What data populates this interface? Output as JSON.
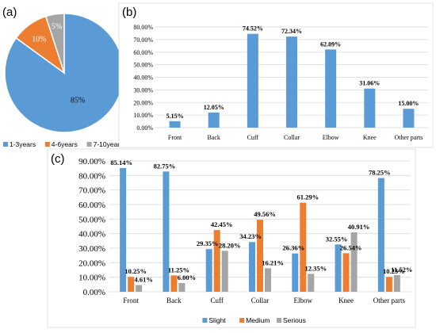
{
  "panels": {
    "a": "(a)",
    "b": "(b)",
    "c": "(c)"
  },
  "chart_data": [
    {
      "type": "pie",
      "panel": "(a)",
      "categories": [
        "1-3years",
        "4-6years",
        "7-10years"
      ],
      "values": [
        85,
        10,
        5
      ],
      "value_labels": [
        "85%",
        "10%",
        "5%"
      ],
      "colors": [
        "#5b9bd5",
        "#ed7d31",
        "#a5a5a5"
      ],
      "legend": "bottom"
    },
    {
      "type": "bar",
      "panel": "(b)",
      "categories": [
        "Front",
        "Back",
        "Cuff",
        "Collar",
        "Elbow",
        "Knee",
        "Other parts"
      ],
      "values": [
        5.15,
        12.05,
        74.52,
        72.34,
        62.09,
        31.06,
        15.0
      ],
      "value_labels": [
        "5.15%",
        "12.05%",
        "74.52%",
        "72.34%",
        "62.09%",
        "31.06%",
        "15.00%"
      ],
      "yticks": [
        "0.00%",
        "10.00%",
        "20.00%",
        "30.00%",
        "40.00%",
        "50.00%",
        "60.00%",
        "70.00%",
        "80.00%"
      ],
      "ylim": [
        0,
        80
      ],
      "color": "#5b9bd5",
      "grid": true
    },
    {
      "type": "bar",
      "panel": "(c)",
      "categories": [
        "Front",
        "Back",
        "Cuff",
        "Collar",
        "Elbow",
        "Knee",
        "Other parts"
      ],
      "series": [
        {
          "name": "Slight",
          "color": "#5b9bd5",
          "values": [
            85.14,
            82.75,
            29.35,
            34.23,
            26.36,
            32.55,
            78.25
          ],
          "value_labels": [
            "85.14%",
            "82.75%",
            "29.35%",
            "34.23%",
            "26.36%",
            "32.55%",
            "78.25%"
          ]
        },
        {
          "name": "Medium",
          "color": "#ed7d31",
          "values": [
            10.25,
            11.25,
            42.45,
            49.56,
            61.29,
            26.54,
            10.23
          ],
          "value_labels": [
            "10.25%",
            "11.25%",
            "42.45%",
            "49.56%",
            "61.29%",
            "26.54%",
            "10.23%"
          ]
        },
        {
          "name": "Serious",
          "color": "#a5a5a5",
          "values": [
            4.61,
            6.0,
            28.2,
            16.21,
            12.35,
            40.91,
            11.52
          ],
          "value_labels": [
            "4.61%",
            "6.00%",
            "28.20%",
            "16.21%",
            "12.35%",
            "40.91%",
            "11.52%"
          ]
        }
      ],
      "yticks": [
        "0.00%",
        "10.00%",
        "20.00%",
        "30.00%",
        "40.00%",
        "50.00%",
        "60.00%",
        "70.00%",
        "80.00%",
        "90.00%"
      ],
      "ylim": [
        0,
        90
      ],
      "grid": true,
      "legend": "bottom"
    }
  ]
}
